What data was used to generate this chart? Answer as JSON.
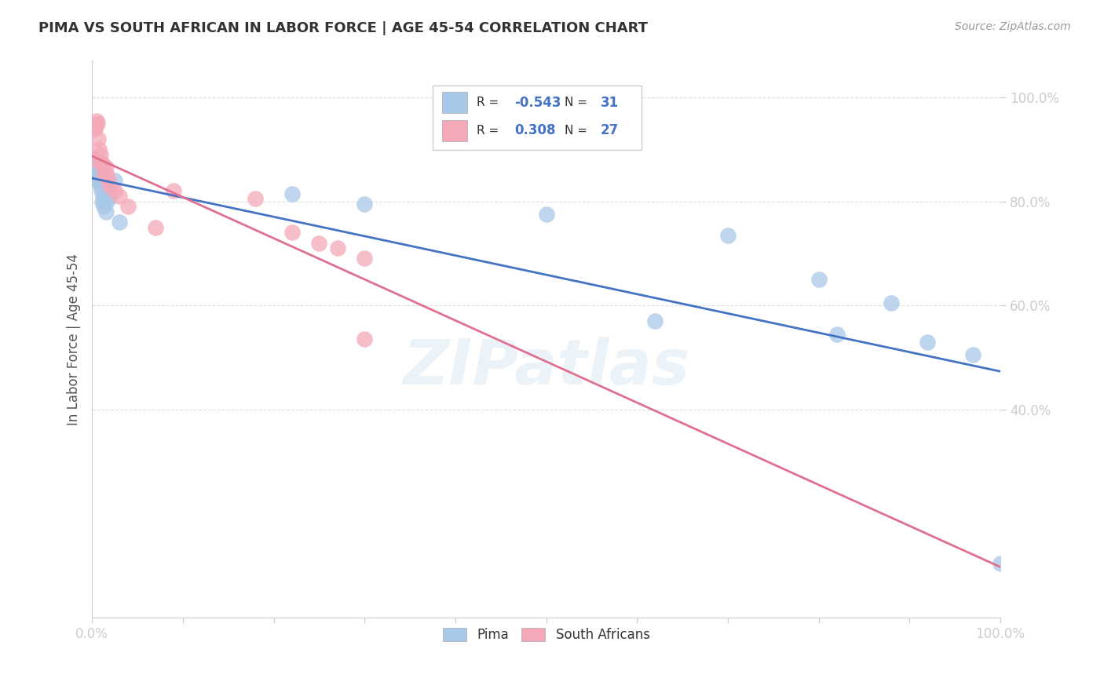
{
  "title": "PIMA VS SOUTH AFRICAN IN LABOR FORCE | AGE 45-54 CORRELATION CHART",
  "source": "Source: ZipAtlas.com",
  "ylabel": "In Labor Force | Age 45-54",
  "pima_R": -0.543,
  "pima_N": 31,
  "sa_R": 0.308,
  "sa_N": 27,
  "pima_color": "#a8c8e8",
  "sa_color": "#f4a8b8",
  "pima_line_color": "#4472c4",
  "sa_line_color": "#e07090",
  "legend_label_pima": "Pima",
  "legend_label_sa": "South Africans",
  "pima_x": [
    0.002,
    0.003,
    0.004,
    0.005,
    0.005,
    0.006,
    0.007,
    0.007,
    0.008,
    0.009,
    0.01,
    0.011,
    0.012,
    0.013,
    0.015,
    0.016,
    0.018,
    0.02,
    0.025,
    0.03,
    0.22,
    0.3,
    0.5,
    0.62,
    0.7,
    0.8,
    0.82,
    0.88,
    0.92,
    0.97,
    1.0
  ],
  "pima_y": [
    0.87,
    0.88,
    0.865,
    0.85,
    0.845,
    0.84,
    0.875,
    0.855,
    0.86,
    0.83,
    0.82,
    0.8,
    0.81,
    0.79,
    0.78,
    0.8,
    0.815,
    0.81,
    0.84,
    0.76,
    0.815,
    0.795,
    0.775,
    0.57,
    0.735,
    0.65,
    0.545,
    0.605,
    0.53,
    0.505,
    0.105
  ],
  "sa_x": [
    0.002,
    0.003,
    0.004,
    0.005,
    0.006,
    0.007,
    0.008,
    0.009,
    0.01,
    0.011,
    0.012,
    0.013,
    0.015,
    0.016,
    0.018,
    0.02,
    0.025,
    0.03,
    0.04,
    0.07,
    0.09,
    0.18,
    0.22,
    0.25,
    0.27,
    0.3,
    0.3
  ],
  "sa_y": [
    0.88,
    0.94,
    0.945,
    0.955,
    0.95,
    0.92,
    0.9,
    0.89,
    0.875,
    0.87,
    0.87,
    0.85,
    0.865,
    0.85,
    0.84,
    0.83,
    0.82,
    0.81,
    0.79,
    0.75,
    0.82,
    0.805,
    0.74,
    0.72,
    0.71,
    0.69,
    0.535
  ],
  "xlim": [
    0.0,
    1.0
  ],
  "ylim": [
    0.0,
    1.07
  ],
  "watermark": "ZIPatlas",
  "background_color": "#ffffff",
  "grid_color": "#dddddd"
}
